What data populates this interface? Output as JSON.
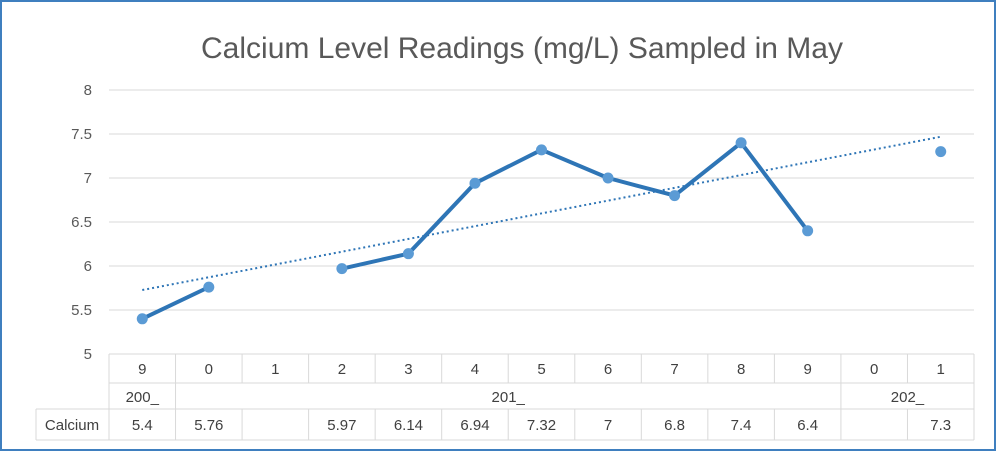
{
  "chart_data": {
    "type": "line",
    "title": "Calcium Level Readings (mg/L) Sampled in May",
    "ylim": [
      5,
      8
    ],
    "yticks": [
      "8",
      "7.5",
      "7",
      "6.5",
      "6",
      "5.5",
      "5"
    ],
    "grid": true,
    "categories": [
      "9",
      "0",
      "1",
      "2",
      "3",
      "4",
      "5",
      "6",
      "7",
      "8",
      "9",
      "0",
      "1"
    ],
    "groups": [
      {
        "label": "200_",
        "start": 0,
        "end": 0
      },
      {
        "label": "201_",
        "start": 1,
        "end": 10
      },
      {
        "label": "202_",
        "start": 11,
        "end": 12
      }
    ],
    "series": [
      {
        "name": "Calcium",
        "values": [
          5.4,
          5.76,
          null,
          5.97,
          6.14,
          6.94,
          7.32,
          7,
          6.8,
          7.4,
          6.4,
          null,
          7.3
        ],
        "labels": [
          "5.4",
          "5.76",
          "",
          "5.97",
          "6.14",
          "6.94",
          "7.32",
          "7",
          "6.8",
          "7.4",
          "6.4",
          "",
          "7.3"
        ],
        "color": "#2e75b6",
        "marker_color": "#5b9bd5"
      }
    ],
    "trendline": {
      "type": "linear",
      "style": "dotted",
      "color": "#2e75b6"
    },
    "data_table": true
  }
}
